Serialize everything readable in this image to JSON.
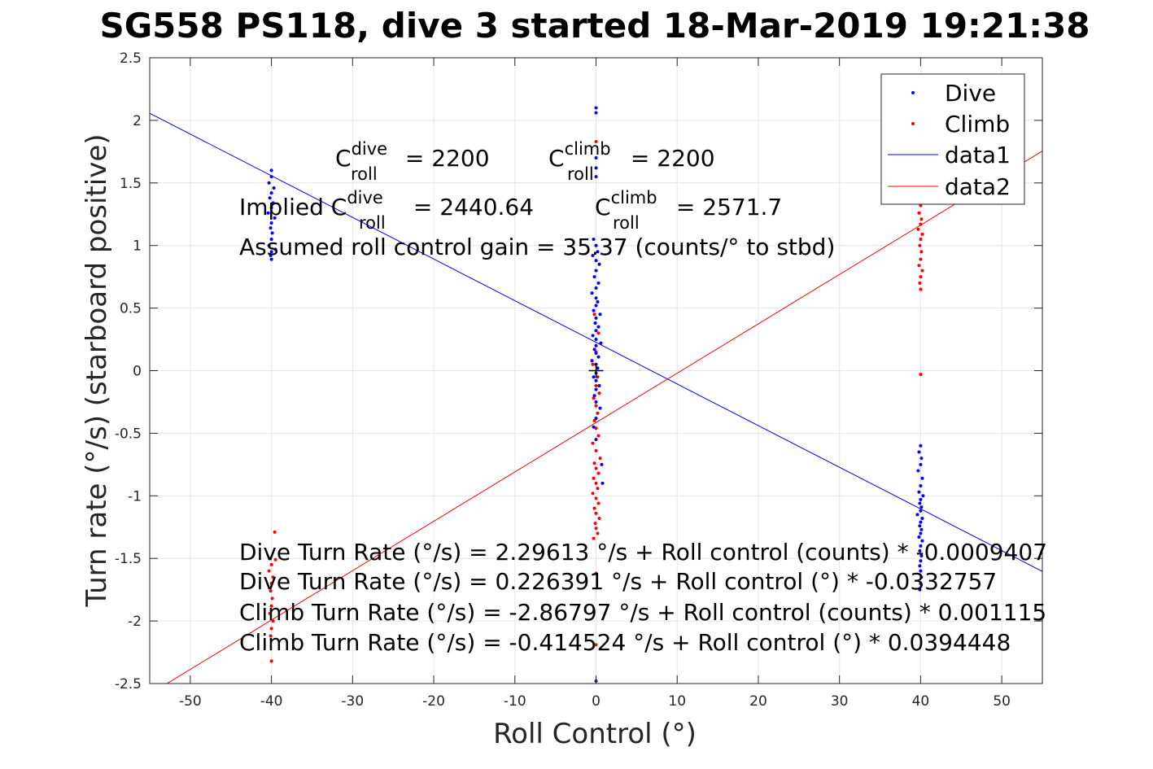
{
  "chart_data": {
    "type": "scatter",
    "title": "SG558 PS118, dive 3 started 18-Mar-2019 19:21:38",
    "xlabel": "Roll Control (°)",
    "ylabel": "Turn rate (°/s) (starboard positive)",
    "xlim": [
      -55,
      55
    ],
    "ylim": [
      -2.5,
      2.5
    ],
    "xticks": [
      -50,
      -40,
      -30,
      -20,
      -10,
      0,
      10,
      20,
      30,
      40,
      50
    ],
    "xtick_labels": [
      "-50",
      "-40",
      "-30",
      "-20",
      "-10",
      "0",
      "10",
      "20",
      "30",
      "40",
      "50"
    ],
    "yticks": [
      -2.5,
      -2,
      -1.5,
      -1,
      -0.5,
      0,
      0.5,
      1,
      1.5,
      2,
      2.5
    ],
    "ytick_labels": [
      "-2.5",
      "-2",
      "-1.5",
      "-1",
      "-0.5",
      "0",
      "0.5",
      "1",
      "1.5",
      "2",
      "2.5"
    ],
    "grid": true,
    "legend_position": "top-right",
    "series": [
      {
        "name": "Dive",
        "kind": "points",
        "color": "#0000ff",
        "points": [
          [
            -40,
            1.6
          ],
          [
            -40,
            1.55
          ],
          [
            -40.3,
            1.5
          ],
          [
            -39.7,
            1.46
          ],
          [
            -40,
            1.42
          ],
          [
            -40.2,
            1.38
          ],
          [
            -39.8,
            1.34
          ],
          [
            -40,
            1.3
          ],
          [
            -40.4,
            1.26
          ],
          [
            -39.6,
            1.22
          ],
          [
            -40,
            1.18
          ],
          [
            -40.1,
            1.14
          ],
          [
            -39.9,
            1.1
          ],
          [
            -40,
            1.05
          ],
          [
            -40.3,
            1.0
          ],
          [
            -39.5,
            0.97
          ],
          [
            -40,
            0.95
          ],
          [
            -40.1,
            0.92
          ],
          [
            -40,
            0.89
          ],
          [
            0,
            2.1
          ],
          [
            0,
            2.06
          ],
          [
            0,
            1.7
          ],
          [
            0,
            1.62
          ],
          [
            0,
            1.55
          ],
          [
            -0.3,
            1.05
          ],
          [
            0,
            1.0
          ],
          [
            0.2,
            0.95
          ],
          [
            -0.4,
            0.92
          ],
          [
            0,
            0.88
          ],
          [
            0.4,
            0.85
          ],
          [
            0,
            0.8
          ],
          [
            -0.2,
            0.75
          ],
          [
            0.3,
            0.7
          ],
          [
            0,
            0.66
          ],
          [
            -0.5,
            0.62
          ],
          [
            0,
            0.58
          ],
          [
            0.2,
            0.55
          ],
          [
            0,
            0.52
          ],
          [
            -0.3,
            0.48
          ],
          [
            0.5,
            0.45
          ],
          [
            0,
            0.42
          ],
          [
            -0.1,
            0.38
          ],
          [
            0.3,
            0.35
          ],
          [
            0,
            0.32
          ],
          [
            -0.4,
            0.28
          ],
          [
            0,
            0.25
          ],
          [
            0.6,
            0.22
          ],
          [
            0,
            0.2
          ],
          [
            -0.2,
            0.17
          ],
          [
            0,
            0.14
          ],
          [
            0.3,
            0.11
          ],
          [
            -0.5,
            0.08
          ],
          [
            0,
            0.05
          ],
          [
            0.2,
            0.02
          ],
          [
            0,
            -0.02
          ],
          [
            -0.3,
            -0.05
          ],
          [
            0,
            -0.08
          ],
          [
            0.4,
            -0.12
          ],
          [
            0,
            -0.15
          ],
          [
            -0.2,
            -0.2
          ],
          [
            0,
            -0.25
          ],
          [
            0.5,
            -0.3
          ],
          [
            0,
            -0.38
          ],
          [
            -0.3,
            -0.45
          ],
          [
            0,
            -0.55
          ],
          [
            0.7,
            -0.75
          ],
          [
            0.8,
            -0.9
          ],
          [
            0,
            -2.48
          ],
          [
            40,
            -0.6
          ],
          [
            39.8,
            -0.65
          ],
          [
            40.1,
            -0.7
          ],
          [
            40,
            -0.75
          ],
          [
            39.7,
            -0.8
          ],
          [
            40.2,
            -0.86
          ],
          [
            40,
            -0.92
          ],
          [
            39.8,
            -0.97
          ],
          [
            40.3,
            -1.0
          ],
          [
            40,
            -1.03
          ],
          [
            39.9,
            -1.06
          ],
          [
            40.1,
            -1.09
          ],
          [
            40,
            -1.12
          ],
          [
            39.6,
            -1.15
          ],
          [
            40.2,
            -1.18
          ],
          [
            40,
            -1.21
          ],
          [
            39.9,
            -1.24
          ],
          [
            40.1,
            -1.27
          ],
          [
            40,
            -1.3
          ],
          [
            39.8,
            -1.33
          ],
          [
            40.2,
            -1.36
          ],
          [
            40,
            -1.4
          ],
          [
            39.9,
            -1.44
          ],
          [
            40.1,
            -1.48
          ],
          [
            40,
            -1.52
          ],
          [
            39.9,
            -1.56
          ],
          [
            40,
            -1.6
          ],
          [
            40.1,
            -1.65
          ],
          [
            40,
            -1.7
          ],
          [
            39.9,
            -1.75
          ]
        ]
      },
      {
        "name": "Climb",
        "kind": "points",
        "color": "#ff0000",
        "points": [
          [
            -39.6,
            -1.29
          ],
          [
            -40.2,
            -1.5
          ],
          [
            -39.5,
            -1.51
          ],
          [
            -40,
            -1.55
          ],
          [
            -40.3,
            -1.6
          ],
          [
            -39.8,
            -1.65
          ],
          [
            -40,
            -1.7
          ],
          [
            -40.1,
            -1.76
          ],
          [
            -39.9,
            -1.82
          ],
          [
            -40,
            -1.88
          ],
          [
            -40.2,
            -1.94
          ],
          [
            -39.8,
            -2.0
          ],
          [
            -40,
            -2.06
          ],
          [
            -40.1,
            -2.12
          ],
          [
            -40,
            -2.32
          ],
          [
            0,
            1.83
          ],
          [
            0,
            1.0
          ],
          [
            -0.2,
            0.45
          ],
          [
            0.3,
            0.3
          ],
          [
            0,
            0.15
          ],
          [
            -0.4,
            0.05
          ],
          [
            0.2,
            -0.05
          ],
          [
            0,
            -0.12
          ],
          [
            0.4,
            -0.18
          ],
          [
            -0.3,
            -0.22
          ],
          [
            0,
            -0.28
          ],
          [
            0.2,
            -0.34
          ],
          [
            -0.2,
            -0.4
          ],
          [
            0,
            -0.46
          ],
          [
            0.3,
            -0.52
          ],
          [
            -0.4,
            -0.58
          ],
          [
            0,
            -0.64
          ],
          [
            0.5,
            -0.7
          ],
          [
            -0.2,
            -0.74
          ],
          [
            0,
            -0.78
          ],
          [
            0.3,
            -0.82
          ],
          [
            -0.3,
            -0.86
          ],
          [
            0,
            -0.9
          ],
          [
            0.2,
            -0.94
          ],
          [
            -0.4,
            -0.98
          ],
          [
            0,
            -1.02
          ],
          [
            0.3,
            -1.06
          ],
          [
            -0.2,
            -1.1
          ],
          [
            0,
            -1.14
          ],
          [
            0.4,
            -1.18
          ],
          [
            -0.1,
            -1.22
          ],
          [
            0,
            -1.26
          ],
          [
            0.2,
            -1.3
          ],
          [
            -0.3,
            -1.34
          ],
          [
            0,
            -1.62
          ],
          [
            0,
            -2.19
          ],
          [
            40,
            1.32
          ],
          [
            39.8,
            1.26
          ],
          [
            40.1,
            1.21
          ],
          [
            40,
            1.17
          ],
          [
            39.7,
            1.13
          ],
          [
            40.2,
            1.09
          ],
          [
            40,
            1.05
          ],
          [
            39.9,
            1.0
          ],
          [
            40.1,
            0.95
          ],
          [
            40,
            0.89
          ],
          [
            39.8,
            0.84
          ],
          [
            40.2,
            0.8
          ],
          [
            40,
            0.75
          ],
          [
            39.9,
            0.7
          ],
          [
            40,
            0.65
          ],
          [
            40,
            -0.03
          ]
        ]
      },
      {
        "name": "data1",
        "kind": "line",
        "color": "#0000ff",
        "intercept": 0.226391,
        "slope": -0.0332757
      },
      {
        "name": "data2",
        "kind": "line",
        "color": "#ff0000",
        "intercept": -0.414524,
        "slope": 0.0394448
      }
    ],
    "legend": [
      "Dive",
      "Climb",
      "data1",
      "data2"
    ],
    "zero_marker": {
      "x": 0,
      "y": 0,
      "symbol": "+",
      "color": "#000000"
    },
    "annotations": {
      "c_roll_dive": {
        "main": "C",
        "sup": "dive",
        "sub": "roll",
        "tail": " = 2200"
      },
      "c_roll_climb": {
        "main": "C",
        "sup": "climb",
        "sub": "roll",
        "tail": " = 2200"
      },
      "implied_dive": {
        "prefix": "Implied C",
        "sup": "dive",
        "sub": "roll",
        "tail": " = 2440.64"
      },
      "implied_climb": {
        "main": "C",
        "sup": "climb",
        "sub": "roll",
        "tail": " = 2571.7"
      },
      "gain": "Assumed roll control gain = 35.37 (counts/° to stbd)",
      "fit_lines": [
        "Dive Turn Rate (°/s) = 2.29613 °/s + Roll control (counts) * -0.0009407",
        "Dive Turn Rate (°/s) = 0.226391 °/s + Roll control (°) * -0.0332757",
        "Climb Turn Rate (°/s) = -2.86797 °/s + Roll control (counts) * 0.001115",
        "Climb Turn Rate (°/s) = -0.414524 °/s + Roll control (°) * 0.0394448"
      ]
    }
  }
}
